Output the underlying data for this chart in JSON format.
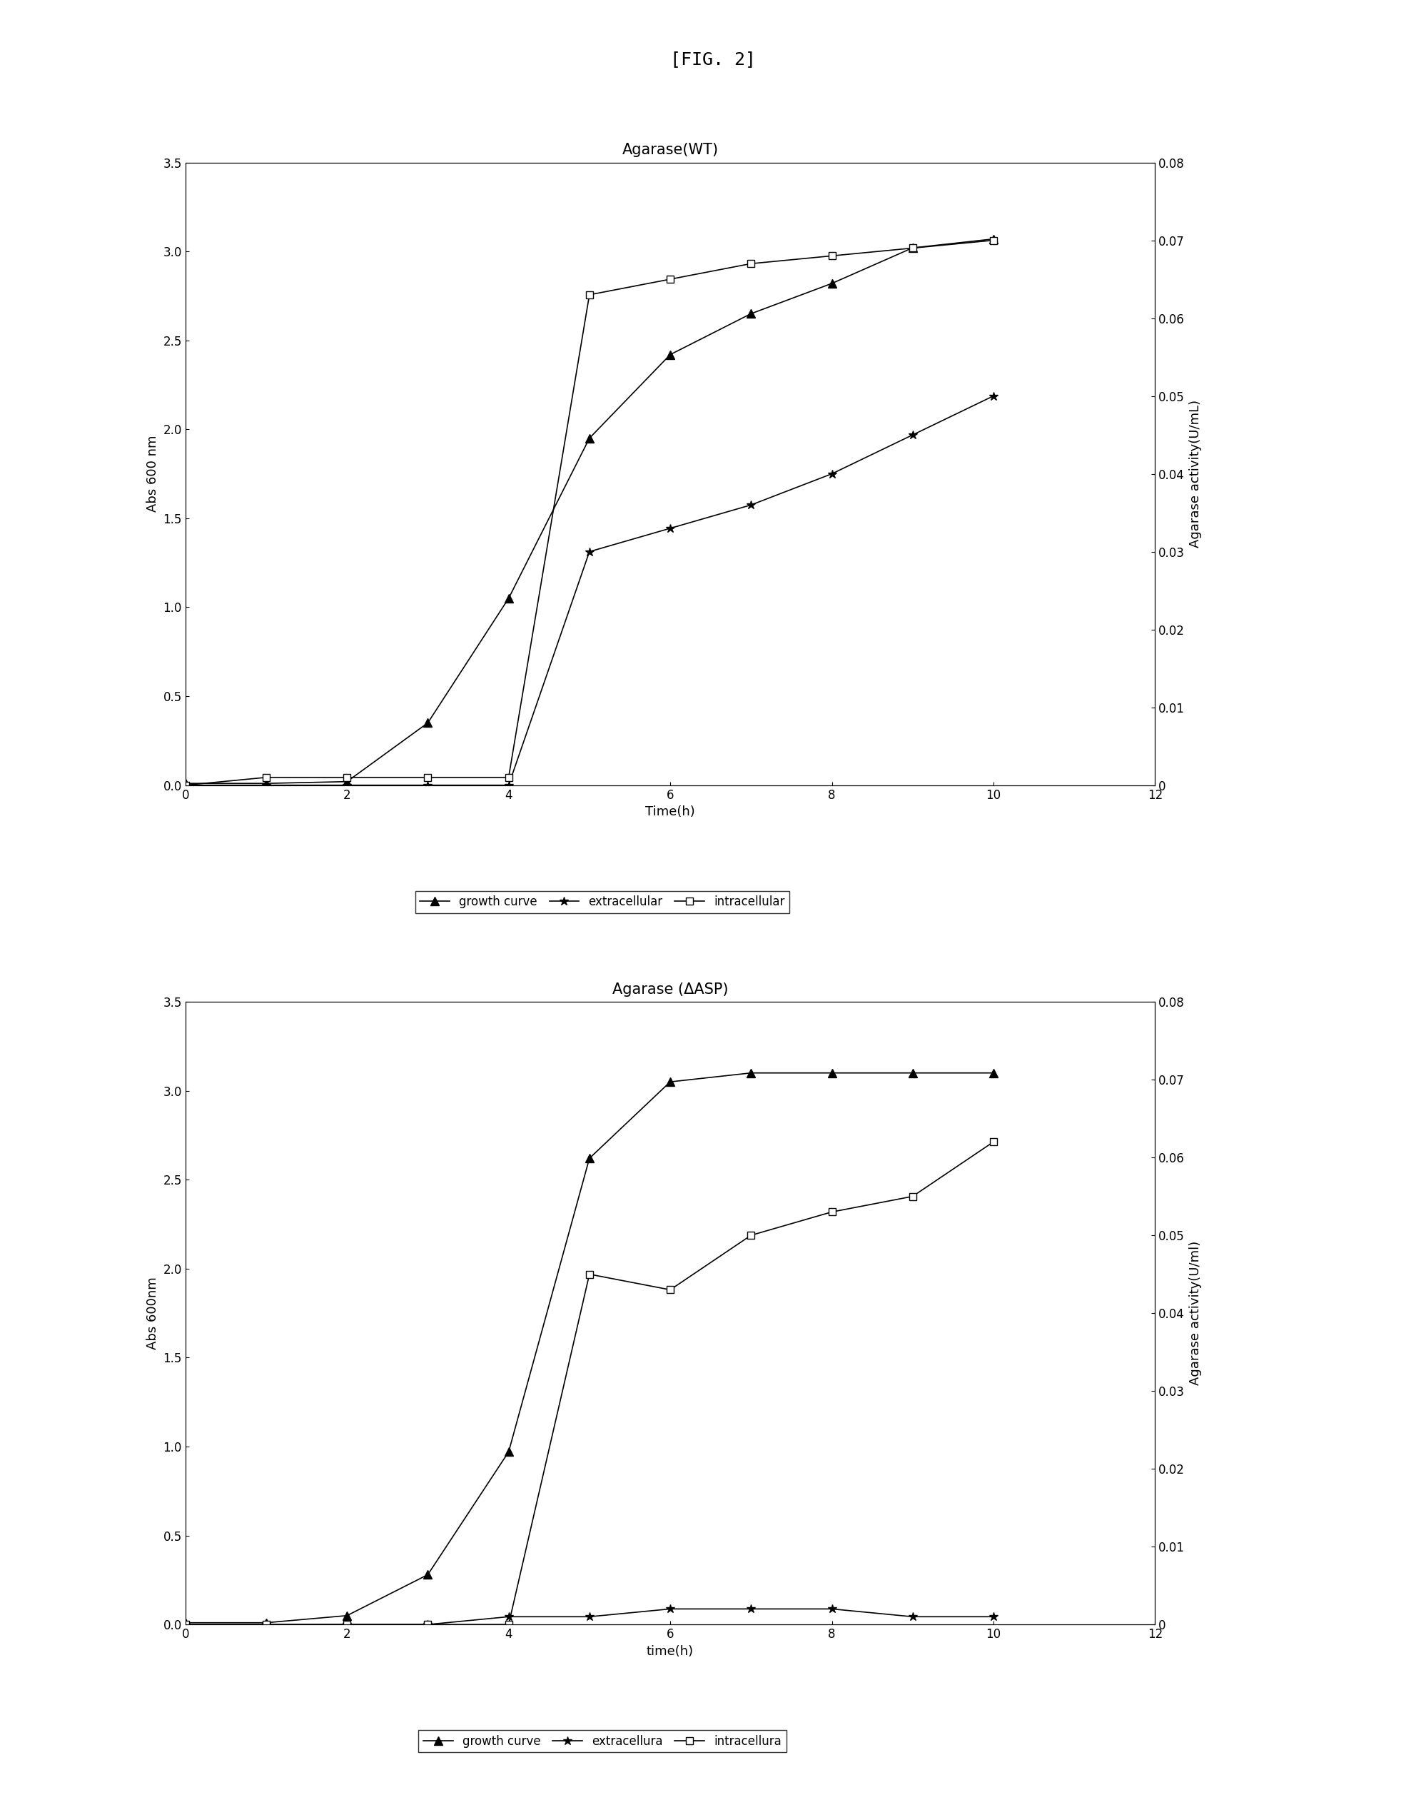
{
  "fig_title": "[FIG. 2]",
  "plot1": {
    "title": "Agarase(WT)",
    "xlabel": "Time(h)",
    "ylabel_left": "Abs 600 nm",
    "ylabel_right": "Agarase activity(U/mL)",
    "xlim": [
      0,
      12
    ],
    "ylim_left": [
      0,
      3.5
    ],
    "ylim_right": [
      0,
      0.08
    ],
    "xticks": [
      0,
      2,
      4,
      6,
      8,
      10,
      12
    ],
    "yticks_left": [
      0.0,
      0.5,
      1.0,
      1.5,
      2.0,
      2.5,
      3.0,
      3.5
    ],
    "yticks_right": [
      0,
      0.01,
      0.02,
      0.03,
      0.04,
      0.05,
      0.06,
      0.07,
      0.08
    ],
    "growth_curve_x": [
      0,
      1,
      2,
      3,
      4,
      5,
      6,
      7,
      8,
      9,
      10
    ],
    "growth_curve_y": [
      0.01,
      0.01,
      0.02,
      0.35,
      1.05,
      1.95,
      2.42,
      2.65,
      2.82,
      3.02,
      3.07
    ],
    "extracellular_x": [
      0,
      1,
      2,
      3,
      4,
      5,
      6,
      7,
      8,
      9,
      10
    ],
    "extracellular_y": [
      0.0,
      0.0,
      0.0,
      0.0,
      0.0,
      0.03,
      0.033,
      0.036,
      0.04,
      0.045,
      0.05
    ],
    "intracellular_x": [
      0,
      1,
      2,
      3,
      4,
      5,
      6,
      7,
      8,
      9,
      10
    ],
    "intracellular_y": [
      0.0,
      0.001,
      0.001,
      0.001,
      0.001,
      0.063,
      0.065,
      0.067,
      0.068,
      0.069,
      0.07
    ],
    "legend_labels": [
      "growth curve",
      "extracellular",
      "intracellular"
    ]
  },
  "plot2": {
    "title": "Agarase (ΔASP)",
    "xlabel": "time(h)",
    "ylabel_left": "Abs 600nm",
    "ylabel_right": "Agarase activity(U/ml)",
    "xlim": [
      0,
      12
    ],
    "ylim_left": [
      0,
      3.5
    ],
    "ylim_right": [
      0,
      0.08
    ],
    "xticks": [
      0,
      2,
      4,
      6,
      8,
      10,
      12
    ],
    "yticks_left": [
      0.0,
      0.5,
      1.0,
      1.5,
      2.0,
      2.5,
      3.0,
      3.5
    ],
    "yticks_right": [
      0,
      0.01,
      0.02,
      0.03,
      0.04,
      0.05,
      0.06,
      0.07,
      0.08
    ],
    "growth_curve_x": [
      0,
      1,
      2,
      3,
      4,
      5,
      6,
      7,
      8,
      9,
      10
    ],
    "growth_curve_y": [
      0.01,
      0.01,
      0.05,
      0.28,
      0.97,
      2.62,
      3.05,
      3.1,
      3.1,
      3.1,
      3.1
    ],
    "extracellular_x": [
      0,
      1,
      2,
      3,
      4,
      5,
      6,
      7,
      8,
      9,
      10
    ],
    "extracellular_y": [
      0.0,
      0.0,
      0.0,
      0.0,
      0.001,
      0.001,
      0.002,
      0.002,
      0.002,
      0.001,
      0.001
    ],
    "intracellular_x": [
      0,
      1,
      2,
      3,
      4,
      5,
      6,
      7,
      8,
      9,
      10
    ],
    "intracellular_y": [
      0.0,
      0.0,
      0.0,
      0.0,
      0.0,
      0.045,
      0.043,
      0.05,
      0.053,
      0.055,
      0.062
    ],
    "legend_labels": [
      "growth curve",
      "extracellura",
      "intracellura"
    ]
  },
  "line_color": "#000000",
  "bg_color": "#ffffff",
  "fontsize_title_fig": 18,
  "fontsize_title": 15,
  "fontsize_label": 13,
  "fontsize_tick": 12,
  "fontsize_legend": 12
}
